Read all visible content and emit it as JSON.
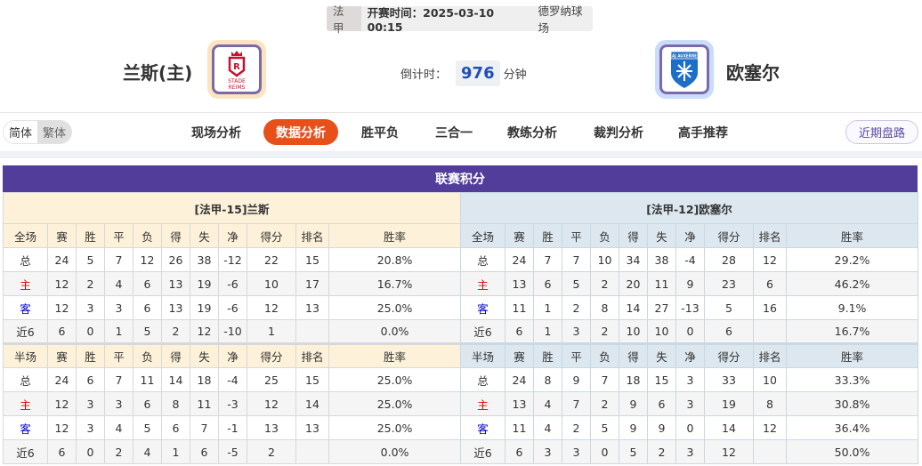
{
  "match": {
    "league": "法甲",
    "kickoff": "开赛时间：2025-03-10 00:15",
    "venue": "德罗纳球场",
    "home": "兰斯(主)",
    "away": "欧塞尔",
    "countdown_label": "倒计时：",
    "countdown_value": "976",
    "countdown_unit": "分钟",
    "home_logo_text": "STADE REIMS",
    "away_logo_text": "AJ AUXERRE"
  },
  "nav": {
    "lang": [
      "简体",
      "繁体"
    ],
    "tabs": [
      "现场分析",
      "数据分析",
      "胜平负",
      "三合一",
      "教练分析",
      "裁判分析",
      "高手推荐"
    ],
    "active": 1,
    "recent": "近期盘路"
  },
  "section_title": "联赛积分",
  "colors": {
    "accent": "#e8501a",
    "title_bg": "#523e9a",
    "home_row": "#dd0000",
    "away_row": "#0000cc"
  },
  "columns_full": [
    "全场",
    "赛",
    "胜",
    "平",
    "负",
    "得",
    "失",
    "净",
    "得分",
    "排名",
    "胜率"
  ],
  "columns_half": [
    "半场",
    "赛",
    "胜",
    "平",
    "负",
    "得",
    "失",
    "净",
    "得分",
    "排名",
    "胜率"
  ],
  "home": {
    "title": "[法甲-15]兰斯",
    "full": [
      [
        "总",
        "24",
        "5",
        "7",
        "12",
        "26",
        "38",
        "-12",
        "22",
        "15",
        "20.8%"
      ],
      [
        "主",
        "12",
        "2",
        "4",
        "6",
        "13",
        "19",
        "-6",
        "10",
        "17",
        "16.7%"
      ],
      [
        "客",
        "12",
        "3",
        "3",
        "6",
        "13",
        "19",
        "-6",
        "12",
        "13",
        "25.0%"
      ],
      [
        "近6",
        "6",
        "0",
        "1",
        "5",
        "2",
        "12",
        "-10",
        "1",
        "",
        "0.0%"
      ]
    ],
    "half": [
      [
        "总",
        "24",
        "6",
        "7",
        "11",
        "14",
        "18",
        "-4",
        "25",
        "15",
        "25.0%"
      ],
      [
        "主",
        "12",
        "3",
        "3",
        "6",
        "8",
        "11",
        "-3",
        "12",
        "14",
        "25.0%"
      ],
      [
        "客",
        "12",
        "3",
        "4",
        "5",
        "6",
        "7",
        "-1",
        "13",
        "13",
        "25.0%"
      ],
      [
        "近6",
        "6",
        "0",
        "2",
        "4",
        "1",
        "6",
        "-5",
        "2",
        "",
        "0.0%"
      ]
    ]
  },
  "away": {
    "title": "[法甲-12]欧塞尔",
    "full": [
      [
        "总",
        "24",
        "7",
        "7",
        "10",
        "34",
        "38",
        "-4",
        "28",
        "12",
        "29.2%"
      ],
      [
        "主",
        "13",
        "6",
        "5",
        "2",
        "20",
        "11",
        "9",
        "23",
        "6",
        "46.2%"
      ],
      [
        "客",
        "11",
        "1",
        "2",
        "8",
        "14",
        "27",
        "-13",
        "5",
        "16",
        "9.1%"
      ],
      [
        "近6",
        "6",
        "1",
        "3",
        "2",
        "10",
        "10",
        "0",
        "6",
        "",
        "16.7%"
      ]
    ],
    "half": [
      [
        "总",
        "24",
        "8",
        "9",
        "7",
        "18",
        "15",
        "3",
        "33",
        "10",
        "33.3%"
      ],
      [
        "主",
        "13",
        "4",
        "7",
        "2",
        "9",
        "6",
        "3",
        "19",
        "8",
        "30.8%"
      ],
      [
        "客",
        "11",
        "4",
        "2",
        "5",
        "9",
        "9",
        "0",
        "14",
        "12",
        "36.4%"
      ],
      [
        "近6",
        "6",
        "3",
        "3",
        "0",
        "5",
        "2",
        "3",
        "12",
        "",
        "50.0%"
      ]
    ]
  }
}
